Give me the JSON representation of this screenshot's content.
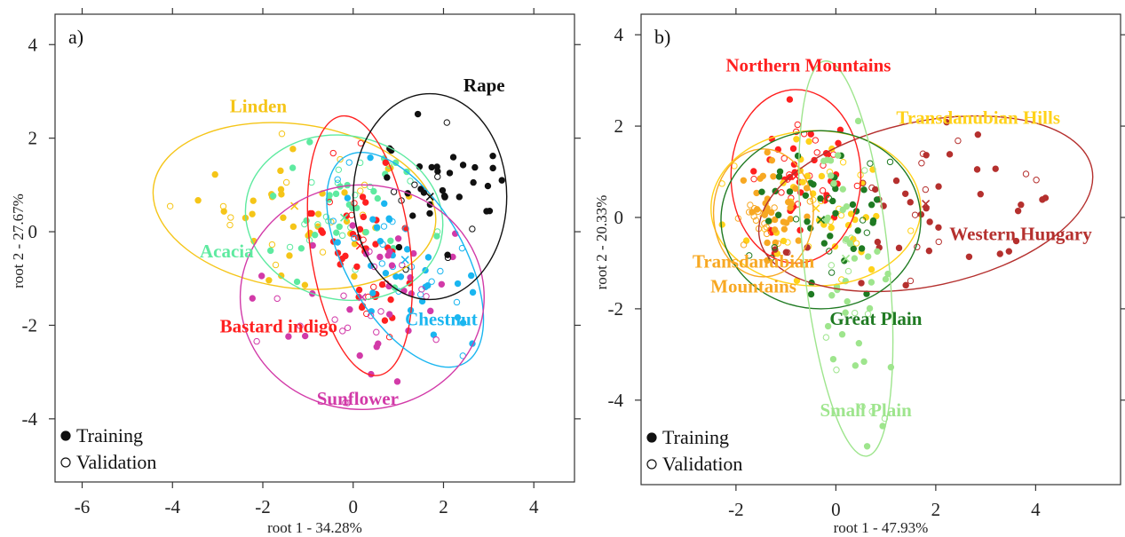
{
  "chart_data": [
    {
      "type": "scatter",
      "panel_label": "a)",
      "xlabel": "root 1 - 34.28%",
      "ylabel": "root 2 - 27.67%",
      "xlim": [
        -6.6,
        4.9
      ],
      "ylim": [
        -5.35,
        4.65
      ],
      "xticks": [
        -6,
        -4,
        -2,
        0,
        2,
        4
      ],
      "yticks": [
        4,
        2,
        0,
        -2,
        -4
      ],
      "legend": [
        {
          "marker": "filled",
          "label": "Training"
        },
        {
          "marker": "open",
          "label": "Validation"
        }
      ],
      "groups": [
        {
          "name": "Linden",
          "color": "#f5c518",
          "label_at": [
            -2.1,
            2.55
          ],
          "ellipse": {
            "cx": -1.3,
            "cy": 0.55,
            "rx": 3.15,
            "ry": 1.75,
            "angle": -8
          },
          "center": [
            -1.3,
            0.55
          ]
        },
        {
          "name": "Acacia",
          "color": "#5eeaa0",
          "label_at": [
            -2.8,
            -0.55
          ],
          "ellipse": {
            "cx": -0.2,
            "cy": 0.3,
            "rx": 2.2,
            "ry": 1.75,
            "angle": -12
          },
          "center": [
            -0.2,
            0.3
          ]
        },
        {
          "name": "Bastard indigo",
          "color": "#ff2020",
          "label_at": [
            -1.65,
            -2.15
          ],
          "ellipse": {
            "cx": 0.15,
            "cy": -0.3,
            "rx": 1.1,
            "ry": 2.8,
            "angle": 8
          },
          "center": [
            0.15,
            -0.3
          ]
        },
        {
          "name": "Chestnut",
          "color": "#1ab6f0",
          "label_at": [
            1.95,
            -2.0
          ],
          "ellipse": {
            "cx": 1.15,
            "cy": -0.6,
            "rx": 1.3,
            "ry": 2.55,
            "angle": 30
          },
          "center": [
            1.15,
            -0.6
          ]
        },
        {
          "name": "Sunflower",
          "color": "#d23aa8",
          "label_at": [
            0.1,
            -3.7
          ],
          "ellipse": {
            "cx": 0.2,
            "cy": -1.4,
            "rx": 2.7,
            "ry": 2.4,
            "angle": 0
          },
          "center": [
            0.2,
            -1.4
          ]
        },
        {
          "name": "Rape",
          "color": "#111111",
          "label_at": [
            2.9,
            3.0
          ],
          "ellipse": {
            "cx": 1.7,
            "cy": 0.75,
            "rx": 1.7,
            "ry": 2.2,
            "angle": 0
          },
          "center": [
            1.7,
            0.75
          ]
        }
      ]
    },
    {
      "type": "scatter",
      "panel_label": "b)",
      "xlabel": "root 1 - 47.93%",
      "ylabel": "root 2 - 20.33%",
      "xlim": [
        -3.9,
        5.7
      ],
      "ylim": [
        -5.85,
        4.45
      ],
      "xticks": [
        -2,
        0,
        2,
        4
      ],
      "yticks": [
        4,
        2,
        0,
        -2,
        -4
      ],
      "legend": [
        {
          "marker": "filled",
          "label": "Training"
        },
        {
          "marker": "open",
          "label": "Validation"
        }
      ],
      "groups": [
        {
          "name": "Northern Mountains",
          "color": "#ff1f1f",
          "label_at": [
            -0.55,
            3.2
          ],
          "ellipse": {
            "cx": -0.8,
            "cy": 0.9,
            "rx": 1.3,
            "ry": 1.9,
            "angle": 0
          },
          "center": [
            -0.8,
            0.9
          ]
        },
        {
          "name": "Transdanubian Hills",
          "color": "#ffd21a",
          "label_at": [
            2.85,
            2.05
          ],
          "ellipse": {
            "cx": -0.4,
            "cy": 0.2,
            "rx": 2.1,
            "ry": 1.7,
            "angle": 0
          },
          "center": [
            -0.4,
            0.2
          ]
        },
        {
          "name": "Western Hungary",
          "color": "#b5302e",
          "label_at": [
            3.7,
            -0.5
          ],
          "ellipse": {
            "cx": 1.8,
            "cy": 0.3,
            "rx": 3.4,
            "ry": 1.8,
            "angle": 12
          },
          "center": [
            1.8,
            0.3
          ]
        },
        {
          "name": "Transdanubian Mountains",
          "color": "#f7a823",
          "label_at": [
            -1.65,
            -1.1
          ],
          "ellipse": {
            "cx": -1.45,
            "cy": 0.1,
            "rx": 1.0,
            "ry": 1.4,
            "angle": 0
          },
          "center": [
            -1.45,
            0.1
          ]
        },
        {
          "name": "Great Plain",
          "color": "#1f7a22",
          "label_at": [
            0.8,
            -2.35
          ],
          "ellipse": {
            "cx": -0.3,
            "cy": -0.05,
            "rx": 2.0,
            "ry": 1.95,
            "angle": 0
          },
          "center": [
            -0.3,
            -0.05
          ]
        },
        {
          "name": "Small Plain",
          "color": "#9ee58d",
          "label_at": [
            0.6,
            -4.35
          ],
          "ellipse": {
            "cx": 0.2,
            "cy": -0.9,
            "rx": 0.85,
            "ry": 4.35,
            "angle": 6
          },
          "center": [
            0.2,
            -0.9
          ]
        }
      ]
    }
  ]
}
